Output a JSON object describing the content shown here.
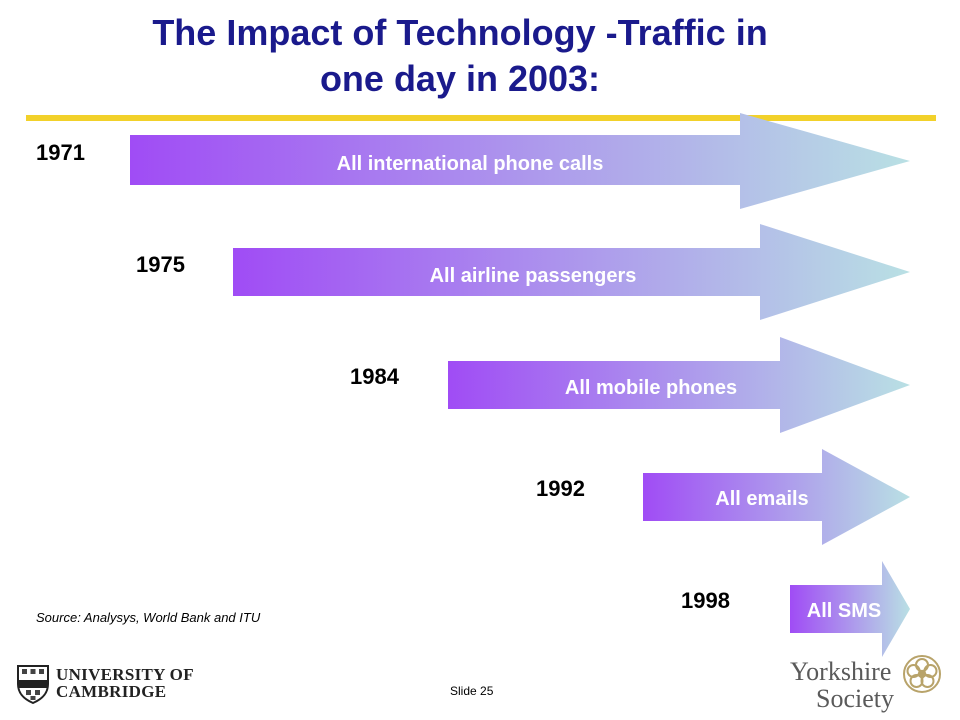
{
  "title": {
    "line1": "The Impact of Technology -Traffic in",
    "line2": "one day in 2003:"
  },
  "colors": {
    "title": "#1a1a8c",
    "rule": "#f2d12a",
    "arrow_start": "#a04cf5",
    "arrow_end": "#b9e0e4"
  },
  "timeline": [
    {
      "year": "1971",
      "label": "All international phone calls"
    },
    {
      "year": "1975",
      "label": "All airline passengers"
    },
    {
      "year": "1984",
      "label": "All mobile phones"
    },
    {
      "year": "1992",
      "label": "All emails"
    },
    {
      "year": "1998",
      "label": "All SMS"
    }
  ],
  "source": "Source: Analysys, World Bank and ITU",
  "slide_number": "Slide 25",
  "logos": {
    "cambridge": {
      "line1": "UNIVERSITY OF",
      "line2": "CAMBRIDGE"
    },
    "yorkshire": {
      "line1": "Yorkshire",
      "line2": "Society"
    }
  }
}
